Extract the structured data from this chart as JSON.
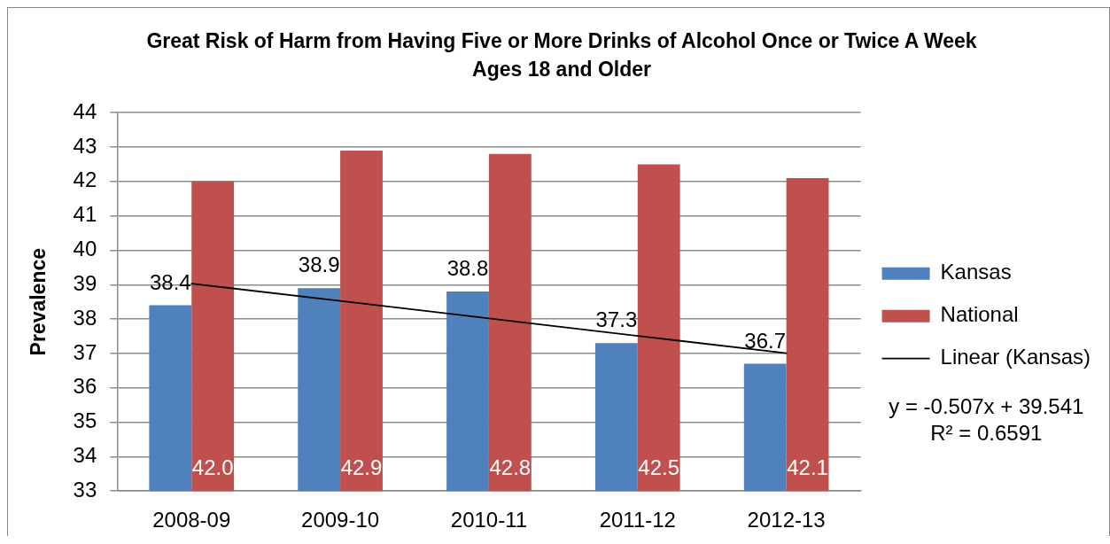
{
  "chart_data": {
    "type": "bar",
    "title": "Great Risk of Harm from Having Five or More Drinks of Alcohol Once or Twice A Week",
    "subtitle": "Ages 18 and Older",
    "ylabel": "Prevalence",
    "categories": [
      "2008-09",
      "2009-10",
      "2010-11",
      "2011-12",
      "2012-13"
    ],
    "series": [
      {
        "name": "Kansas",
        "color": "#4f81bd",
        "values": [
          38.4,
          38.9,
          38.8,
          37.3,
          36.7
        ],
        "value_labels": [
          "38.4",
          "38.9",
          "38.8",
          "37.3",
          "36.7"
        ]
      },
      {
        "name": "National",
        "color": "#c0504d",
        "values": [
          42.0,
          42.9,
          42.8,
          42.5,
          42.1
        ],
        "value_labels": [
          "42.0",
          "42.9",
          "42.8",
          "42.5",
          "42.1"
        ]
      },
      {
        "name": "Linear (Kansas)",
        "type": "line",
        "color": "#000000",
        "values": [
          39.03,
          38.53,
          38.02,
          37.51,
          37.01
        ]
      }
    ],
    "ylim": [
      33,
      44
    ],
    "yticks": [
      33,
      34,
      35,
      36,
      37,
      38,
      39,
      40,
      41,
      42,
      43,
      44
    ],
    "grid": "y",
    "legend": "right",
    "marker": "none",
    "annotations": [
      "y = -0.507x + 39.541",
      "R² = 0.6591"
    ]
  }
}
